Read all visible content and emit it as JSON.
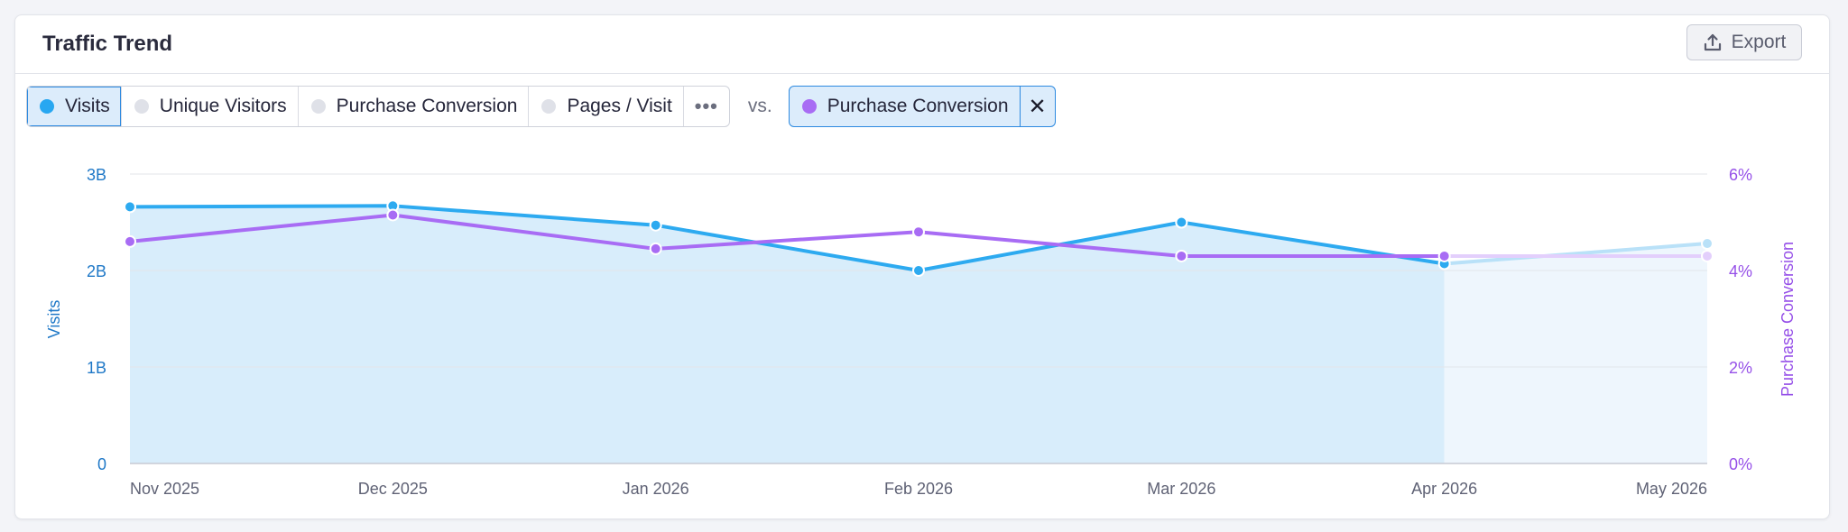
{
  "card": {
    "title": "Traffic Trend",
    "export_label": "Export"
  },
  "metrics": [
    {
      "label": "Visits",
      "active": true
    },
    {
      "label": "Unique Visitors",
      "active": false
    },
    {
      "label": "Purchase Conversion",
      "active": false
    },
    {
      "label": "Pages / Visit",
      "active": false
    }
  ],
  "more_label": "•••",
  "vs_label": "vs.",
  "compare_metric": "Purchase Conversion",
  "colors": {
    "visits": "#2daaf0",
    "visits_fill": "#d8edfb",
    "conversion": "#a86cf4",
    "left_axis": "#1f78c7",
    "right_axis": "#9650e8"
  },
  "chart_data": {
    "type": "line",
    "categories": [
      "Nov 2025",
      "Dec 2025",
      "Jan 2026",
      "Feb 2026",
      "Mar 2026",
      "Apr 2026",
      "May 2026"
    ],
    "series": [
      {
        "name": "Visits",
        "axis": "left",
        "values": [
          2.66,
          2.67,
          2.47,
          2.0,
          2.5,
          2.07,
          2.28
        ],
        "partial_last": true
      },
      {
        "name": "Purchase Conversion",
        "axis": "right",
        "values": [
          4.6,
          5.15,
          4.45,
          4.8,
          4.3,
          4.3,
          4.3
        ],
        "partial_last": true
      }
    ],
    "left_axis": {
      "label": "Visits",
      "ticks": [
        "0",
        "1B",
        "2B",
        "3B"
      ],
      "range": [
        0,
        3
      ]
    },
    "right_axis": {
      "label": "Purchase Conversion",
      "ticks": [
        "0%",
        "2%",
        "4%",
        "6%"
      ],
      "range": [
        0,
        6
      ]
    },
    "grid": true,
    "partial_period_start": "Apr 2026"
  }
}
